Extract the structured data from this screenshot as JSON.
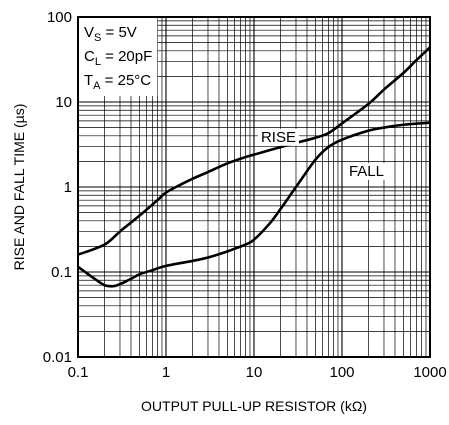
{
  "chart_data": {
    "type": "line",
    "xlabel": "OUTPUT PULL-UP RESISTOR (kΩ)",
    "ylabel": "RISE AND FALL TIME (µs)",
    "xscale": "log",
    "yscale": "log",
    "xlim": [
      0.1,
      1000
    ],
    "ylim": [
      0.01,
      100
    ],
    "grid": true,
    "x_ticks": [
      "0.1",
      "1",
      "10",
      "100",
      "1000"
    ],
    "y_ticks": [
      "0.01",
      "0.1",
      "1",
      "10",
      "100"
    ],
    "conditions": [
      {
        "main": "V",
        "sub": "S",
        "rest": " = 5V"
      },
      {
        "main": "C",
        "sub": "L",
        "rest": " = 20pF"
      },
      {
        "main": "T",
        "sub": "A",
        "rest": " = 25°C"
      }
    ],
    "series": [
      {
        "name": "RISE",
        "x": [
          0.1,
          0.2,
          0.3,
          0.5,
          0.8,
          1.0,
          1.5,
          2,
          3,
          5,
          8,
          10,
          20,
          30,
          50,
          70,
          100,
          200,
          300,
          500,
          700,
          1000
        ],
        "y": [
          0.16,
          0.21,
          0.3,
          0.46,
          0.7,
          0.86,
          1.08,
          1.25,
          1.5,
          1.9,
          2.25,
          2.4,
          2.95,
          3.3,
          3.8,
          4.3,
          5.6,
          9.5,
          14,
          22,
          31,
          44
        ]
      },
      {
        "name": "FALL",
        "x": [
          0.1,
          0.15,
          0.2,
          0.25,
          0.3,
          0.4,
          0.5,
          0.7,
          1,
          2,
          3,
          5,
          8,
          10,
          15,
          20,
          30,
          50,
          70,
          100,
          200,
          300,
          500,
          1000
        ],
        "y": [
          0.115,
          0.085,
          0.07,
          0.068,
          0.072,
          0.083,
          0.094,
          0.105,
          0.118,
          0.135,
          0.148,
          0.175,
          0.21,
          0.24,
          0.37,
          0.55,
          1.0,
          2.1,
          2.95,
          3.6,
          4.6,
          5.0,
          5.4,
          5.7
        ]
      }
    ],
    "annotations": [
      "RISE",
      "FALL"
    ]
  }
}
